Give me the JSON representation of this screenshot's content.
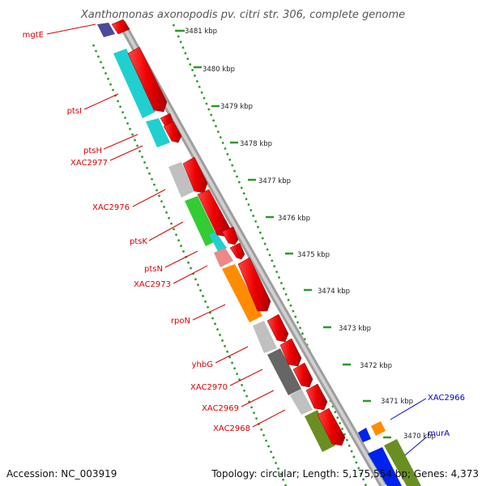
{
  "title": "Xanthomonas axonopodis pv. citri str. 306, complete genome",
  "scale_labels": [
    "3481 kbp",
    "3480 kbp",
    "3479 kbp",
    "3478 kbp",
    "3477 kbp",
    "3476 kbp",
    "3475 kbp",
    "3474 kbp",
    "3473 kbp",
    "3472 kbp",
    "3471 kbp",
    "3470 kbp"
  ],
  "gene_labels": [
    {
      "text": "mgtE",
      "color": "red"
    },
    {
      "text": "ptsI",
      "color": "red"
    },
    {
      "text": "ptsH",
      "color": "red"
    },
    {
      "text": "XAC2977",
      "color": "red"
    },
    {
      "text": "XAC2976",
      "color": "red"
    },
    {
      "text": "ptsK",
      "color": "red"
    },
    {
      "text": "ptsN",
      "color": "red"
    },
    {
      "text": "XAC2973",
      "color": "red"
    },
    {
      "text": "rpoN",
      "color": "red"
    },
    {
      "text": "yhbG",
      "color": "red"
    },
    {
      "text": "XAC2970",
      "color": "red"
    },
    {
      "text": "XAC2969",
      "color": "red"
    },
    {
      "text": "XAC2968",
      "color": "red"
    },
    {
      "text": "XAC2966",
      "color": "blue"
    },
    {
      "text": "murA",
      "color": "blue"
    }
  ],
  "colors": {
    "red_gene": "#ff1a1a",
    "blue_label": "#0000cc",
    "backbone": "#9e9e9e",
    "gc_dots": "#2a9a2a",
    "cyan": "#20d0d0",
    "gray": "#c0c0c0",
    "dark_gray": "#666666",
    "green": "#33cc33",
    "pink": "#ee8888",
    "orange": "#ff8c00",
    "olive": "#6b8e23",
    "blue": "#0022ee",
    "navy": "#4a4a9a"
  },
  "footer": {
    "accession": "Accession: NC_003919",
    "stats": "Topology: circular; Length: 5,175,554 bp; Genes: 4,373"
  }
}
